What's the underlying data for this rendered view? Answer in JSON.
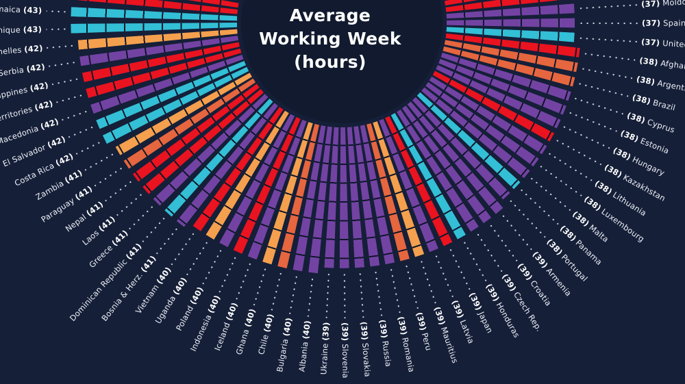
{
  "title_lines": [
    "Average",
    "Working Week",
    "(hours)"
  ],
  "colors": {
    "background": "#151F38",
    "center_circle": "#111A2E",
    "label_text": "#EDF0F7",
    "dotted_line": "#DEE4F0",
    "tick_line": "#0D1629"
  },
  "chart_data": {
    "type": "radial_bar",
    "title": "Average Working Week (hours)",
    "unit": "hours",
    "value_range_visible": [
      37,
      43
    ],
    "label_format_left_side": "{name} ({value})",
    "label_format_right_side": "({value}) {name}",
    "region_colors": {
      "europe": "#7343A3",
      "asia": "#EA1320",
      "africa": "#F5A04E",
      "south_america": "#E6663F",
      "north_america": "#33BFD6"
    },
    "countries": [
      {
        "name": "Jamaica",
        "value": 43,
        "region": "north_america"
      },
      {
        "name": "Martinique",
        "value": 43,
        "region": "north_america"
      },
      {
        "name": "Seychelles",
        "value": 42,
        "region": "africa"
      },
      {
        "name": "Serbia",
        "value": 42,
        "region": "europe"
      },
      {
        "name": "Philippines",
        "value": 42,
        "region": "asia"
      },
      {
        "name": "Palestinian Territories",
        "value": 42,
        "region": "asia"
      },
      {
        "name": "North Macedonia",
        "value": 42,
        "region": "europe"
      },
      {
        "name": "El Salvador",
        "value": 42,
        "region": "north_america"
      },
      {
        "name": "Costa Rica",
        "value": 42,
        "region": "north_america"
      },
      {
        "name": "Zambia",
        "value": 41,
        "region": "africa"
      },
      {
        "name": "Paraguay",
        "value": 41,
        "region": "south_america"
      },
      {
        "name": "Nepal",
        "value": 41,
        "region": "asia"
      },
      {
        "name": "Laos",
        "value": 41,
        "region": "asia"
      },
      {
        "name": "Greece",
        "value": 41,
        "region": "europe"
      },
      {
        "name": "Dominican Republic",
        "value": 41,
        "region": "north_america"
      },
      {
        "name": "Bosnia & Herz.",
        "value": 41,
        "region": "europe"
      },
      {
        "name": "Vietnam",
        "value": 40,
        "region": "asia"
      },
      {
        "name": "Uganda",
        "value": 40,
        "region": "africa"
      },
      {
        "name": "Poland",
        "value": 40,
        "region": "europe"
      },
      {
        "name": "Indonesia",
        "value": 40,
        "region": "asia"
      },
      {
        "name": "Iceland",
        "value": 40,
        "region": "europe"
      },
      {
        "name": "Ghana",
        "value": 40,
        "region": "africa"
      },
      {
        "name": "Chile",
        "value": 40,
        "region": "south_america"
      },
      {
        "name": "Bulgaria",
        "value": 40,
        "region": "europe"
      },
      {
        "name": "Albania",
        "value": 40,
        "region": "europe"
      },
      {
        "name": "Ukraine",
        "value": 39,
        "region": "europe"
      },
      {
        "name": "Slovenia",
        "value": 39,
        "region": "europe"
      },
      {
        "name": "Slovakia",
        "value": 39,
        "region": "europe"
      },
      {
        "name": "Russia",
        "value": 39,
        "region": "europe"
      },
      {
        "name": "Romania",
        "value": 39,
        "region": "europe"
      },
      {
        "name": "Peru",
        "value": 39,
        "region": "south_america"
      },
      {
        "name": "Mauritius",
        "value": 39,
        "region": "africa"
      },
      {
        "name": "Latvia",
        "value": 39,
        "region": "europe"
      },
      {
        "name": "Japan",
        "value": 39,
        "region": "asia"
      },
      {
        "name": "Honduras",
        "value": 39,
        "region": "north_america"
      },
      {
        "name": "Czech Rep.",
        "value": 39,
        "region": "europe"
      },
      {
        "name": "Croatia",
        "value": 39,
        "region": "europe"
      },
      {
        "name": "Armenia",
        "value": 39,
        "region": "europe"
      },
      {
        "name": "Portugal",
        "value": 38,
        "region": "europe"
      },
      {
        "name": "Panama",
        "value": 38,
        "region": "north_america"
      },
      {
        "name": "Malta",
        "value": 38,
        "region": "europe"
      },
      {
        "name": "Luxembourg",
        "value": 38,
        "region": "europe"
      },
      {
        "name": "Lithuania",
        "value": 38,
        "region": "europe"
      },
      {
        "name": "Kazakhstan",
        "value": 38,
        "region": "asia"
      },
      {
        "name": "Hungary",
        "value": 38,
        "region": "europe"
      },
      {
        "name": "Estonia",
        "value": 38,
        "region": "europe"
      },
      {
        "name": "Cyprus",
        "value": 38,
        "region": "europe"
      },
      {
        "name": "Brazil",
        "value": 38,
        "region": "south_america"
      },
      {
        "name": "Argentina",
        "value": 38,
        "region": "south_america"
      },
      {
        "name": "Afghanistan",
        "value": 38,
        "region": "asia"
      },
      {
        "name": "United States",
        "value": 37,
        "region": "north_america"
      },
      {
        "name": "Spain",
        "value": 37,
        "region": "europe"
      },
      {
        "name": "Moldova",
        "value": 37,
        "region": "europe"
      }
    ],
    "cutoff_bars_top_left": [
      {
        "value": 43,
        "region": "asia"
      },
      {
        "value": 43,
        "region": "asia"
      }
    ],
    "cutoff_bars_top_right": [
      {
        "value": 37,
        "region": "asia"
      },
      {
        "value": 37,
        "region": "asia"
      }
    ]
  }
}
